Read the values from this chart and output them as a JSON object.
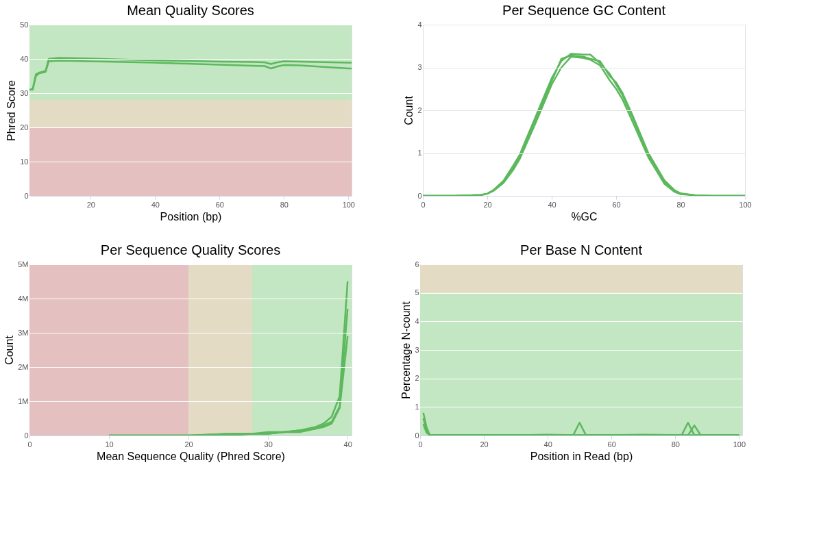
{
  "chart_data": [
    {
      "type": "line",
      "title": "Mean Quality Scores",
      "xlabel": "Position (bp)",
      "ylabel": "Phred Score",
      "xlim": [
        1,
        101
      ],
      "xticks": [
        20,
        40,
        60,
        80,
        100
      ],
      "ylim": [
        0,
        50
      ],
      "yticks": [
        0,
        10,
        20,
        30,
        40,
        50
      ],
      "grid": "y",
      "bands": [
        {
          "axis": "y",
          "from": 0,
          "to": 20,
          "color": "#e4c0c0"
        },
        {
          "axis": "y",
          "from": 20,
          "to": 28,
          "color": "#e4dbc4"
        },
        {
          "axis": "y",
          "from": 28,
          "to": 50,
          "color": "#c3e6c3"
        }
      ],
      "series": [
        {
          "color": "#5cb85c",
          "x": [
            1,
            2,
            3,
            4,
            5,
            6,
            7,
            10,
            20,
            30,
            40,
            50,
            60,
            70,
            74,
            76,
            78,
            80,
            85,
            90,
            95,
            100,
            101
          ],
          "values": [
            31,
            31.2,
            35.5,
            36,
            36.2,
            36.5,
            40,
            40.3,
            40.1,
            39.8,
            39.6,
            39.4,
            39.2,
            39.1,
            39.0,
            38.5,
            39,
            39.3,
            39.2,
            39.1,
            39,
            38.9,
            38.9
          ]
        },
        {
          "color": "#5cb85c",
          "x": [
            1,
            2,
            3,
            4,
            5,
            6,
            7,
            10,
            20,
            30,
            40,
            50,
            60,
            70,
            74,
            76,
            78,
            80,
            85,
            90,
            95,
            100,
            101
          ],
          "values": [
            31,
            31,
            35,
            35.8,
            36,
            36.2,
            39.3,
            39.5,
            39.3,
            39.1,
            38.9,
            38.6,
            38.3,
            38,
            37.9,
            37.2,
            37.8,
            38.2,
            38.1,
            37.8,
            37.5,
            37.2,
            37.2
          ]
        }
      ]
    },
    {
      "type": "line",
      "title": "Per Sequence  GC Content",
      "xlabel": "%GC",
      "ylabel": "Count",
      "xlim": [
        0,
        100
      ],
      "xticks": [
        0,
        20,
        40,
        60,
        80,
        100
      ],
      "ylim": [
        0,
        4
      ],
      "yticks": [
        0,
        1,
        2,
        3,
        4
      ],
      "grid": "y",
      "series": [
        {
          "color": "#5cb85c",
          "x": [
            0,
            10,
            18,
            20,
            22,
            25,
            28,
            30,
            35,
            40,
            43,
            46,
            50,
            52,
            55,
            58,
            60,
            62,
            65,
            70,
            75,
            78,
            80,
            85,
            90,
            100
          ],
          "values": [
            0,
            0,
            0.02,
            0.05,
            0.12,
            0.3,
            0.6,
            0.85,
            1.7,
            2.6,
            3.0,
            3.25,
            3.22,
            3.18,
            3.05,
            2.7,
            2.5,
            2.25,
            1.75,
            0.9,
            0.28,
            0.1,
            0.04,
            0.01,
            0,
            0
          ]
        },
        {
          "color": "#5cb85c",
          "x": [
            0,
            10,
            18,
            20,
            22,
            25,
            28,
            30,
            35,
            40,
            43,
            46,
            50,
            52,
            55,
            58,
            60,
            62,
            65,
            70,
            75,
            78,
            80,
            85,
            90,
            100
          ],
          "values": [
            0,
            0,
            0.02,
            0.05,
            0.14,
            0.35,
            0.7,
            0.95,
            1.85,
            2.75,
            3.15,
            3.32,
            3.3,
            3.3,
            3.1,
            2.85,
            2.6,
            2.35,
            1.85,
            0.95,
            0.33,
            0.12,
            0.05,
            0.01,
            0,
            0
          ]
        },
        {
          "color": "#5cb85c",
          "x": [
            0,
            10,
            18,
            20,
            22,
            25,
            28,
            30,
            35,
            40,
            43,
            46,
            50,
            52,
            55,
            58,
            60,
            62,
            65,
            70,
            75,
            78,
            80,
            85,
            90,
            100
          ],
          "values": [
            0,
            0,
            0.02,
            0.05,
            0.13,
            0.32,
            0.65,
            0.9,
            1.78,
            2.68,
            3.2,
            3.28,
            3.25,
            3.2,
            3.15,
            2.8,
            2.65,
            2.4,
            1.9,
            1.0,
            0.36,
            0.14,
            0.06,
            0.01,
            0,
            0
          ]
        }
      ]
    },
    {
      "type": "line",
      "title": "Per Sequence  Quality Scores",
      "xlabel": "Mean Sequence Quality (Phred Score)",
      "ylabel": "Count",
      "xlim": [
        0,
        40.5
      ],
      "xticks": [
        0,
        10,
        20,
        30,
        40
      ],
      "ylim": [
        0,
        5000000
      ],
      "yticks": [
        0,
        {
          "value": 1000000,
          "label": "1M"
        },
        {
          "value": 2000000,
          "label": "2M"
        },
        {
          "value": 3000000,
          "label": "3M"
        },
        {
          "value": 4000000,
          "label": "4M"
        },
        {
          "value": 5000000,
          "label": "5M"
        }
      ],
      "grid": "y",
      "bands": [
        {
          "axis": "x",
          "from": 0,
          "to": 20,
          "color": "#e4c0c0"
        },
        {
          "axis": "x",
          "from": 20,
          "to": 28,
          "color": "#e4dbc4"
        },
        {
          "axis": "x",
          "from": 28,
          "to": 40.5,
          "color": "#c3e6c3"
        }
      ],
      "series": [
        {
          "color": "#5cb85c",
          "x": [
            10,
            15,
            20,
            25,
            28,
            30,
            32,
            34,
            36,
            37,
            38,
            39,
            40
          ],
          "values": [
            0,
            0,
            0,
            50000,
            50000,
            100000,
            100000,
            150000,
            250000,
            350000,
            550000,
            1150000,
            4500000
          ]
        },
        {
          "color": "#5cb85c",
          "x": [
            10,
            15,
            20,
            25,
            28,
            30,
            32,
            34,
            36,
            37,
            38,
            39,
            40
          ],
          "values": [
            0,
            0,
            0,
            50000,
            50000,
            50000,
            100000,
            150000,
            200000,
            300000,
            400000,
            850000,
            3700000
          ]
        },
        {
          "color": "#5cb85c",
          "x": [
            10,
            15,
            20,
            25,
            28,
            30,
            32,
            34,
            36,
            37,
            38,
            39,
            40
          ],
          "values": [
            0,
            0,
            0,
            0,
            50000,
            50000,
            100000,
            100000,
            200000,
            250000,
            350000,
            800000,
            2900000
          ]
        }
      ]
    },
    {
      "type": "line",
      "title": "Per Base N Content",
      "xlabel": "Position in Read (bp)",
      "ylabel": "Percentage N-count",
      "xlim": [
        0,
        101
      ],
      "xticks": [
        0,
        20,
        40,
        60,
        80,
        100
      ],
      "ylim": [
        0,
        6
      ],
      "yticks": [
        0,
        1,
        2,
        3,
        4,
        5,
        6
      ],
      "grid": "y",
      "bands": [
        {
          "axis": "y",
          "from": 0,
          "to": 5,
          "color": "#c3e6c3"
        },
        {
          "axis": "y",
          "from": 5,
          "to": 6,
          "color": "#e4dbc4"
        }
      ],
      "series": [
        {
          "color": "#5cb85c",
          "x": [
            1,
            2,
            3,
            10,
            20,
            30,
            40,
            48,
            50,
            52,
            60,
            70,
            82,
            84,
            86,
            90,
            100
          ],
          "values": [
            0.8,
            0.3,
            0.02,
            0.01,
            0.02,
            0.01,
            0.03,
            0.01,
            0.45,
            0.01,
            0.01,
            0.03,
            0.01,
            0.01,
            0.01,
            0.01,
            0.01
          ]
        },
        {
          "color": "#5cb85c",
          "x": [
            1,
            2,
            3,
            10,
            20,
            30,
            40,
            48,
            50,
            52,
            60,
            70,
            82,
            84,
            86,
            90,
            100
          ],
          "values": [
            0.6,
            0.2,
            0.01,
            0.01,
            0.01,
            0.02,
            0.01,
            0.01,
            0.01,
            0.01,
            0.02,
            0.01,
            0.01,
            0.45,
            0.01,
            0.01,
            0.01
          ]
        },
        {
          "color": "#5cb85c",
          "x": [
            1,
            2,
            3,
            20,
            40,
            60,
            84,
            86,
            88,
            100
          ],
          "values": [
            0.4,
            0.1,
            0.01,
            0.01,
            0.01,
            0.01,
            0.01,
            0.35,
            0.01,
            0.01
          ]
        }
      ]
    }
  ]
}
